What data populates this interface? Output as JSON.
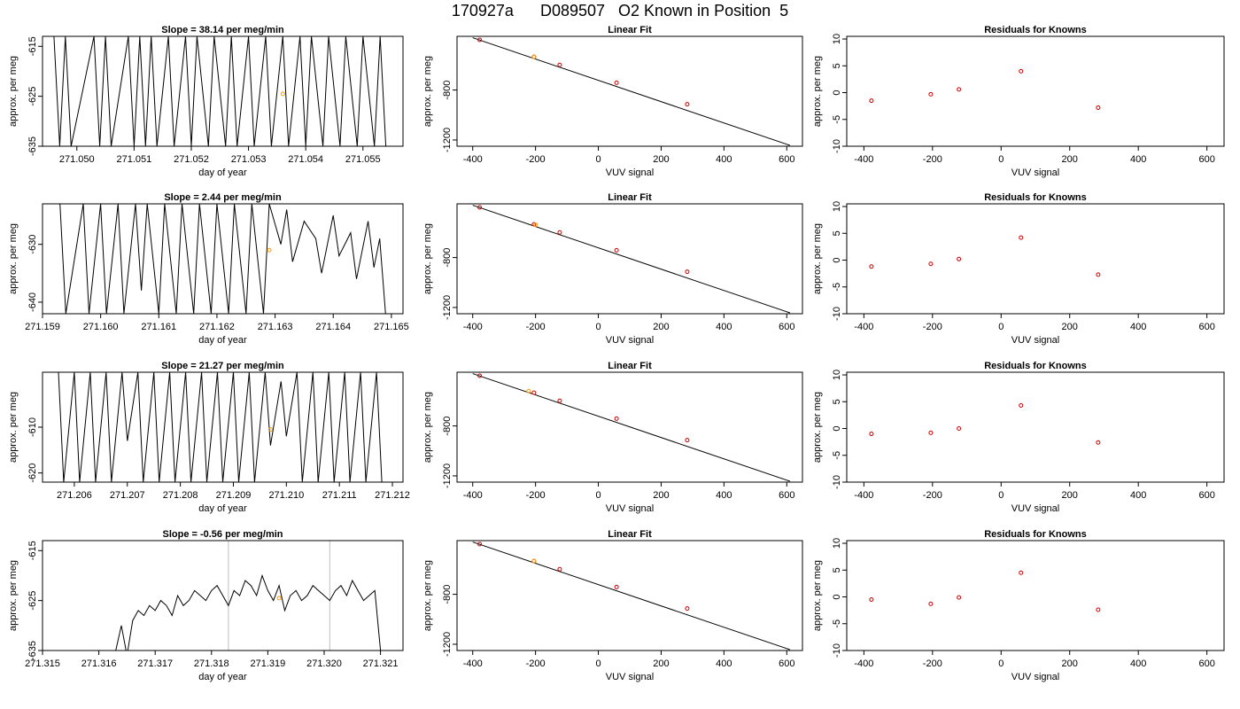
{
  "figure": {
    "title": "170927a      D089507   O2 Known in Position  5"
  },
  "colors": {
    "line": "#000000",
    "highlight": "#ff9900",
    "point": "#cc0000",
    "marker_line": "#bebebe"
  },
  "chart_data": [
    {
      "type": "line",
      "row": 0,
      "col": 0,
      "title": "Slope =  38.14  per meg/min",
      "xlabel": "day of year",
      "ylabel": "approx. per meg",
      "xlim": [
        271.0494,
        271.0557
      ],
      "ylim": [
        -635,
        -613
      ],
      "xticks": [
        "271.050",
        "271.051",
        "271.052",
        "271.053",
        "271.054",
        "271.055"
      ],
      "xtick_values": [
        271.05,
        271.051,
        271.052,
        271.053,
        271.054,
        271.055
      ],
      "yticks": [
        "-615",
        "-625",
        "-635"
      ],
      "ytick_values": [
        -615,
        -625,
        -635
      ],
      "x": [
        271.0496,
        271.0497,
        271.0498,
        271.0499,
        271.0503,
        271.0504,
        271.0505,
        271.0506,
        271.0509,
        271.051,
        271.0511,
        271.0512,
        271.0513,
        271.0514,
        271.0516,
        271.0517,
        271.0519,
        271.052,
        271.0521,
        271.0523,
        271.0524,
        271.0526,
        271.0527,
        271.0528,
        271.053,
        271.0531,
        271.0533,
        271.0534,
        271.0536,
        271.0537,
        271.0539,
        271.054,
        271.0541,
        271.0543,
        271.0544,
        271.0546,
        271.0547,
        271.0549,
        271.055,
        271.0552,
        271.0553,
        271.0554
      ],
      "y": [
        -613,
        -635,
        -613,
        -635,
        -613,
        -635,
        -613,
        -635,
        -613,
        -635,
        -613,
        -635,
        -613,
        -635,
        -613,
        -635,
        -613,
        -635,
        -613,
        -635,
        -613,
        -635,
        -613,
        -635,
        -613,
        -635,
        -613,
        -635,
        -613,
        -635,
        -613,
        -635,
        -613,
        -635,
        -613,
        -635,
        -613,
        -635,
        -613,
        -635,
        -613,
        -635
      ],
      "highlight": {
        "x": 271.0536,
        "y": -624.5
      }
    },
    {
      "type": "scatter",
      "row": 0,
      "col": 1,
      "title": "Linear Fit",
      "xlabel": "VUV signal",
      "ylabel": "approx. per meg",
      "xlim": [
        -450,
        650
      ],
      "ylim": [
        -1250,
        -370
      ],
      "xticks": [
        "-400",
        "-200",
        "0",
        "200",
        "400",
        "600"
      ],
      "xtick_values": [
        -400,
        -200,
        0,
        200,
        400,
        600
      ],
      "yticks": [
        "-800",
        "-1200"
      ],
      "ytick_values": [
        -800,
        -1200
      ],
      "points": {
        "x": [
          -378,
          -205,
          -123,
          58,
          283
        ],
        "y": [
          -398,
          -534,
          -599,
          -742,
          -914
        ]
      },
      "fit_line": {
        "x": [
          -400,
          610
        ],
        "y": [
          -381,
          -1243
        ]
      },
      "highlight": {
        "x": -205,
        "y": -534
      }
    },
    {
      "type": "scatter",
      "row": 0,
      "col": 2,
      "title": "Residuals for Knowns",
      "xlabel": "VUV signal",
      "ylabel": "approx. per meg",
      "xlim": [
        -450,
        650
      ],
      "ylim": [
        -10,
        10.5
      ],
      "xticks": [
        "-400",
        "-200",
        "0",
        "200",
        "400",
        "600"
      ],
      "xtick_values": [
        -400,
        -200,
        0,
        200,
        400,
        600
      ],
      "yticks": [
        "-10",
        "-5",
        "0",
        "5",
        "10"
      ],
      "ytick_values": [
        -10,
        -5,
        0,
        5,
        10
      ],
      "points": {
        "x": [
          -378,
          -205,
          -123,
          58,
          283
        ],
        "y": [
          -1.5,
          -0.3,
          0.6,
          4.0,
          -2.8
        ]
      }
    },
    {
      "type": "line",
      "row": 1,
      "col": 0,
      "title": "Slope =  2.44  per meg/min",
      "xlabel": "day of year",
      "ylabel": "approx. per meg",
      "xlim": [
        271.159,
        271.1652
      ],
      "ylim": [
        -642,
        -623
      ],
      "xticks": [
        "271.159",
        "271.160",
        "271.161",
        "271.162",
        "271.163",
        "271.164",
        "271.165"
      ],
      "xtick_values": [
        271.159,
        271.16,
        271.161,
        271.162,
        271.163,
        271.164,
        271.165
      ],
      "yticks": [
        "-630",
        "-640"
      ],
      "ytick_values": [
        -630,
        -640
      ],
      "x": [
        271.1593,
        271.1594,
        271.1597,
        271.1598,
        271.16,
        271.1601,
        271.1603,
        271.1604,
        271.1606,
        271.1607,
        271.1608,
        271.161,
        271.1611,
        271.1613,
        271.1614,
        271.1616,
        271.1617,
        271.1619,
        271.162,
        271.1622,
        271.1623,
        271.1625,
        271.1626,
        271.1628,
        271.1629,
        271.1631,
        271.1632,
        271.1633,
        271.1635,
        271.1637,
        271.1638,
        271.164,
        271.1641,
        271.1643,
        271.1644,
        271.1646,
        271.1647,
        271.1648,
        271.1649
      ],
      "y": [
        -623,
        -642,
        -623,
        -642,
        -623,
        -642,
        -623,
        -642,
        -623,
        -638,
        -623,
        -642,
        -623,
        -642,
        -623,
        -642,
        -623,
        -642,
        -623,
        -642,
        -623,
        -642,
        -623,
        -642,
        -623,
        -630,
        -624,
        -633,
        -626,
        -629,
        -635,
        -625,
        -632,
        -628,
        -636,
        -626,
        -634,
        -629,
        -642
      ],
      "highlight": {
        "x": 271.1629,
        "y": -631
      }
    },
    {
      "type": "scatter",
      "row": 1,
      "col": 1,
      "title": "Linear Fit",
      "xlabel": "VUV signal",
      "ylabel": "approx. per meg",
      "xlim": [
        -450,
        650
      ],
      "ylim": [
        -1250,
        -370
      ],
      "xticks": [
        "-400",
        "-200",
        "0",
        "200",
        "400",
        "600"
      ],
      "xtick_values": [
        -400,
        -200,
        0,
        200,
        400,
        600
      ],
      "yticks": [
        "-800",
        "-1200"
      ],
      "ytick_values": [
        -800,
        -1200
      ],
      "points": {
        "x": [
          -378,
          -205,
          -123,
          58,
          283
        ],
        "y": [
          -398,
          -534,
          -599,
          -742,
          -914
        ]
      },
      "fit_line": {
        "x": [
          -400,
          610
        ],
        "y": [
          -381,
          -1243
        ]
      },
      "highlight": {
        "x": -200,
        "y": -538
      }
    },
    {
      "type": "scatter",
      "row": 1,
      "col": 2,
      "title": "Residuals for Knowns",
      "xlabel": "VUV signal",
      "ylabel": "approx. per meg",
      "xlim": [
        -450,
        650
      ],
      "ylim": [
        -10,
        10.5
      ],
      "xticks": [
        "-400",
        "-200",
        "0",
        "200",
        "400",
        "600"
      ],
      "xtick_values": [
        -400,
        -200,
        0,
        200,
        400,
        600
      ],
      "yticks": [
        "-10",
        "-5",
        "0",
        "5",
        "10"
      ],
      "ytick_values": [
        -10,
        -5,
        0,
        5,
        10
      ],
      "points": {
        "x": [
          -378,
          -205,
          -123,
          58,
          283
        ],
        "y": [
          -1.2,
          -0.7,
          0.2,
          4.2,
          -2.7
        ]
      }
    },
    {
      "type": "line",
      "row": 2,
      "col": 0,
      "title": "Slope =  21.27  per meg/min",
      "xlabel": "day of year",
      "ylabel": "approx. per meg",
      "xlim": [
        271.2054,
        271.2122
      ],
      "ylim": [
        -622,
        -598
      ],
      "xticks": [
        "271.206",
        "271.207",
        "271.208",
        "271.209",
        "271.210",
        "271.211",
        "271.212"
      ],
      "xtick_values": [
        271.206,
        271.207,
        271.208,
        271.209,
        271.21,
        271.211,
        271.212
      ],
      "yticks": [
        "-610",
        "-620"
      ],
      "ytick_values": [
        -610,
        -620
      ],
      "x": [
        271.2057,
        271.2058,
        271.206,
        271.2061,
        271.2063,
        271.2064,
        271.2066,
        271.2067,
        271.2069,
        271.207,
        271.2072,
        271.2073,
        271.2075,
        271.2076,
        271.2078,
        271.2079,
        271.2081,
        271.2082,
        271.2084,
        271.2085,
        271.2087,
        271.2088,
        271.209,
        271.2091,
        271.2093,
        271.2094,
        271.2096,
        271.2097,
        271.2099,
        271.21,
        271.2102,
        271.2103,
        271.2105,
        271.2106,
        271.2108,
        271.2109,
        271.2111,
        271.2112,
        271.2114,
        271.2115,
        271.2117,
        271.2118
      ],
      "y": [
        -598,
        -622,
        -598,
        -622,
        -598,
        -622,
        -598,
        -622,
        -598,
        -613,
        -598,
        -622,
        -598,
        -622,
        -598,
        -622,
        -598,
        -622,
        -598,
        -622,
        -598,
        -622,
        -598,
        -622,
        -598,
        -622,
        -598,
        -614,
        -600,
        -612,
        -598,
        -622,
        -598,
        -622,
        -598,
        -622,
        -598,
        -622,
        -598,
        -622,
        -598,
        -622
      ],
      "highlight": {
        "x": 271.2097,
        "y": -610.5
      }
    },
    {
      "type": "scatter",
      "row": 2,
      "col": 1,
      "title": "Linear Fit",
      "xlabel": "VUV signal",
      "ylabel": "approx. per meg",
      "xlim": [
        -450,
        650
      ],
      "ylim": [
        -1250,
        -370
      ],
      "xticks": [
        "-400",
        "-200",
        "0",
        "200",
        "400",
        "600"
      ],
      "xtick_values": [
        -400,
        -200,
        0,
        200,
        400,
        600
      ],
      "yticks": [
        "-800",
        "-1200"
      ],
      "ytick_values": [
        -800,
        -1200
      ],
      "points": {
        "x": [
          -378,
          -205,
          -123,
          58,
          283
        ],
        "y": [
          -398,
          -534,
          -599,
          -742,
          -914
        ]
      },
      "fit_line": {
        "x": [
          -400,
          610
        ],
        "y": [
          -381,
          -1243
        ]
      },
      "highlight": {
        "x": -222,
        "y": -521
      }
    },
    {
      "type": "scatter",
      "row": 2,
      "col": 2,
      "title": "Residuals for Knowns",
      "xlabel": "VUV signal",
      "ylabel": "approx. per meg",
      "xlim": [
        -450,
        650
      ],
      "ylim": [
        -10,
        10.5
      ],
      "xticks": [
        "-400",
        "-200",
        "0",
        "200",
        "400",
        "600"
      ],
      "xtick_values": [
        -400,
        -200,
        0,
        200,
        400,
        600
      ],
      "yticks": [
        "-10",
        "-5",
        "0",
        "5",
        "10"
      ],
      "ytick_values": [
        -10,
        -5,
        0,
        5,
        10
      ],
      "points": {
        "x": [
          -378,
          -205,
          -123,
          58,
          283
        ],
        "y": [
          -1.0,
          -0.8,
          0.0,
          4.3,
          -2.6
        ]
      }
    },
    {
      "type": "line",
      "row": 3,
      "col": 0,
      "title": "Slope =  -0.56  per meg/min",
      "xlabel": "day of year",
      "ylabel": "approx. per meg",
      "xlim": [
        271.315,
        271.3214
      ],
      "ylim": [
        -635,
        -613
      ],
      "xticks": [
        "271.315",
        "271.316",
        "271.317",
        "271.318",
        "271.319",
        "271.320",
        "271.321"
      ],
      "xtick_values": [
        271.315,
        271.316,
        271.317,
        271.318,
        271.319,
        271.32,
        271.321
      ],
      "yticks": [
        "-615",
        "-625",
        "-635"
      ],
      "ytick_values": [
        -615,
        -625,
        -635
      ],
      "x": [
        271.3163,
        271.3164,
        271.3165,
        271.3166,
        271.3167,
        271.3168,
        271.3169,
        271.317,
        271.3171,
        271.3172,
        271.3173,
        271.3174,
        271.3175,
        271.3176,
        271.3177,
        271.3178,
        271.3179,
        271.318,
        271.3181,
        271.3182,
        271.3183,
        271.3184,
        271.3185,
        271.3186,
        271.3187,
        271.3188,
        271.3189,
        271.319,
        271.3191,
        271.3192,
        271.3193,
        271.3194,
        271.3195,
        271.3196,
        271.3197,
        271.3198,
        271.3199,
        271.32,
        271.3201,
        271.3202,
        271.3203,
        271.3204,
        271.3205,
        271.3206,
        271.3207,
        271.3208,
        271.3209,
        271.321
      ],
      "y": [
        -635,
        -630,
        -636,
        -629,
        -627,
        -628,
        -626,
        -627,
        -625,
        -626,
        -628,
        -624,
        -626,
        -625,
        -623,
        -624,
        -625,
        -623,
        -622,
        -624,
        -626,
        -623,
        -624,
        -621,
        -622,
        -624,
        -620,
        -623,
        -625,
        -622,
        -627,
        -624,
        -623,
        -625,
        -624,
        -622,
        -623,
        -624,
        -625,
        -623,
        -622,
        -624,
        -621,
        -623,
        -625,
        -624,
        -623,
        -635
      ],
      "markers": [
        271.3183,
        271.3201
      ],
      "highlight": {
        "x": 271.3192,
        "y": -624.5
      }
    },
    {
      "type": "scatter",
      "row": 3,
      "col": 1,
      "title": "Linear Fit",
      "xlabel": "VUV signal",
      "ylabel": "approx. per meg",
      "xlim": [
        -450,
        650
      ],
      "ylim": [
        -1250,
        -370
      ],
      "xticks": [
        "-400",
        "-200",
        "0",
        "200",
        "400",
        "600"
      ],
      "xtick_values": [
        -400,
        -200,
        0,
        200,
        400,
        600
      ],
      "yticks": [
        "-800",
        "-1200"
      ],
      "ytick_values": [
        -800,
        -1200
      ],
      "points": {
        "x": [
          -378,
          -205,
          -123,
          58,
          283
        ],
        "y": [
          -398,
          -534,
          -599,
          -742,
          -914
        ]
      },
      "fit_line": {
        "x": [
          -400,
          610
        ],
        "y": [
          -381,
          -1243
        ]
      },
      "highlight": {
        "x": -205,
        "y": -534
      }
    },
    {
      "type": "scatter",
      "row": 3,
      "col": 2,
      "title": "Residuals for Knowns",
      "xlabel": "VUV signal",
      "ylabel": "approx. per meg",
      "xlim": [
        -450,
        650
      ],
      "ylim": [
        -10,
        10.5
      ],
      "xticks": [
        "-400",
        "-200",
        "0",
        "200",
        "400",
        "600"
      ],
      "xtick_values": [
        -400,
        -200,
        0,
        200,
        400,
        600
      ],
      "yticks": [
        "-10",
        "-5",
        "0",
        "5",
        "10"
      ],
      "ytick_values": [
        -10,
        -5,
        0,
        5,
        10
      ],
      "points": {
        "x": [
          -378,
          -205,
          -123,
          58,
          283
        ],
        "y": [
          -0.5,
          -1.3,
          -0.1,
          4.5,
          -2.4
        ]
      }
    }
  ]
}
